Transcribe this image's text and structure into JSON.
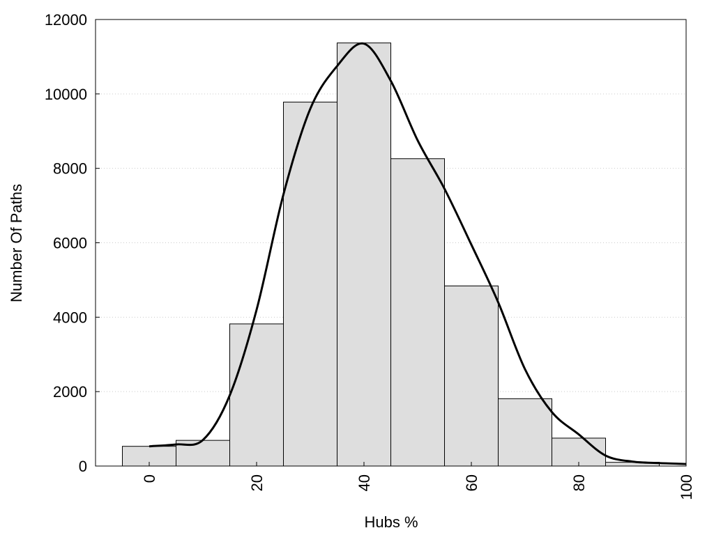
{
  "chart_data": {
    "type": "bar",
    "x": [
      0,
      10,
      20,
      30,
      40,
      50,
      60,
      70,
      80,
      90
    ],
    "values": [
      530,
      690,
      3820,
      9780,
      11370,
      8260,
      4840,
      1810,
      750,
      100
    ],
    "curve": {
      "x": [
        0,
        5,
        10,
        15,
        20,
        25,
        30,
        35,
        40,
        45,
        50,
        55,
        60,
        65,
        70,
        75,
        80,
        85,
        90,
        95,
        100
      ],
      "y": [
        530,
        580,
        700,
        1900,
        4200,
        7300,
        9600,
        10750,
        11350,
        10350,
        8750,
        7450,
        5950,
        4400,
        2600,
        1450,
        850,
        280,
        120,
        80,
        55
      ]
    },
    "xlabel": "Hubs %",
    "ylabel": "Number Of Paths",
    "xlim": [
      -10,
      100
    ],
    "ylim": [
      0,
      12000
    ],
    "xticks": [
      "0",
      "20",
      "40",
      "60",
      "80",
      "100"
    ],
    "yticks": [
      "0",
      "2000",
      "4000",
      "6000",
      "8000",
      "10000",
      "12000"
    ],
    "grid": true,
    "colors": {
      "bar_fill": "#dedede",
      "bar_stroke": "#000000",
      "curve": "#000000",
      "grid": "#c9c9c9"
    }
  }
}
